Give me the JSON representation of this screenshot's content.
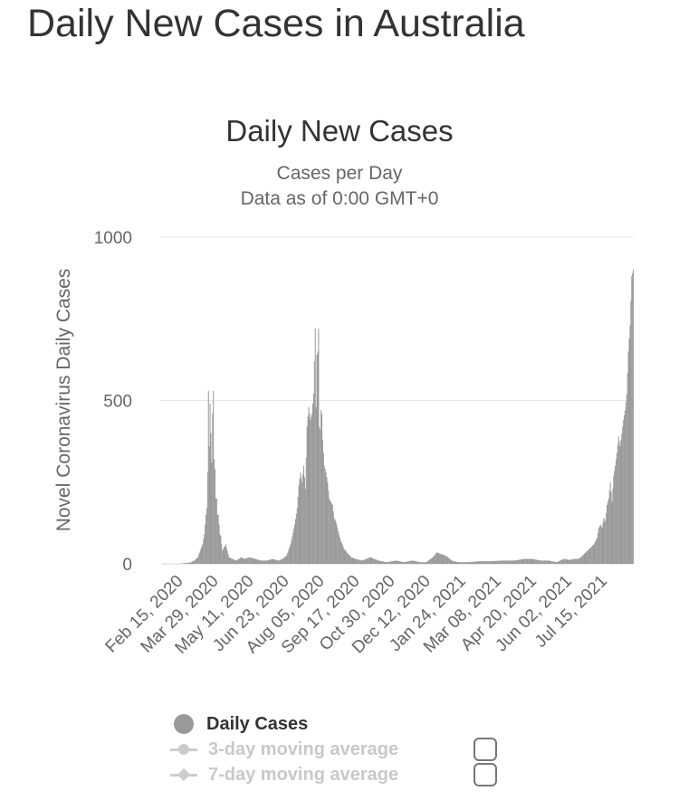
{
  "page_title": "Daily New Cases in Australia",
  "legend": {
    "items": [
      {
        "label": "Daily Cases",
        "active": true
      },
      {
        "label": "3-day moving average",
        "active": false
      },
      {
        "label": "7-day moving average",
        "active": false
      }
    ]
  },
  "colors": {
    "bars": "#999999",
    "grid": "#e6e6e6",
    "axis": "#ccd6eb",
    "inactive": "#cccccc"
  },
  "chart_data": {
    "type": "bar",
    "title": "Daily New Cases",
    "subtitle_lines": [
      "Cases per Day",
      "Data as of 0:00 GMT+0"
    ],
    "xlabel": "",
    "ylabel": "Novel Coronavirus Daily Cases",
    "ylim": [
      0,
      1000
    ],
    "y_ticks": [
      0,
      500,
      1000
    ],
    "x_tick_labels": [
      "Feb 15, 2020",
      "Mar 29, 2020",
      "May 11, 2020",
      "Jun 23, 2020",
      "Aug 05, 2020",
      "Sep 17, 2020",
      "Oct 30, 2020",
      "Dec 12, 2020",
      "Jan 24, 2021",
      "Mar 08, 2021",
      "Apr 20, 2021",
      "Jun 02, 2021",
      "Jul 15, 2021"
    ],
    "x_range": [
      "2020-01-25",
      "2021-08-22"
    ],
    "grid": true,
    "legend_position": "bottom",
    "series": [
      {
        "name": "Daily Cases",
        "points": [
          [
            "2020-02-15",
            0
          ],
          [
            "2020-02-22",
            2
          ],
          [
            "2020-02-29",
            4
          ],
          [
            "2020-03-05",
            10
          ],
          [
            "2020-03-09",
            20
          ],
          [
            "2020-03-12",
            40
          ],
          [
            "2020-03-15",
            60
          ],
          [
            "2020-03-17",
            90
          ],
          [
            "2020-03-19",
            150
          ],
          [
            "2020-03-20",
            170
          ],
          [
            "2020-03-21",
            280
          ],
          [
            "2020-03-22",
            530
          ],
          [
            "2020-03-23",
            360
          ],
          [
            "2020-03-24",
            490
          ],
          [
            "2020-03-25",
            400
          ],
          [
            "2020-03-26",
            310
          ],
          [
            "2020-03-27",
            460
          ],
          [
            "2020-03-28",
            530
          ],
          [
            "2020-03-29",
            320
          ],
          [
            "2020-03-30",
            290
          ],
          [
            "2020-03-31",
            200
          ],
          [
            "2020-04-01",
            200
          ],
          [
            "2020-04-02",
            150
          ],
          [
            "2020-04-03",
            150
          ],
          [
            "2020-04-04",
            120
          ],
          [
            "2020-04-05",
            90
          ],
          [
            "2020-04-06",
            85
          ],
          [
            "2020-04-07",
            60
          ],
          [
            "2020-04-08",
            40
          ],
          [
            "2020-04-10",
            50
          ],
          [
            "2020-04-12",
            60
          ],
          [
            "2020-04-14",
            40
          ],
          [
            "2020-04-16",
            20
          ],
          [
            "2020-04-20",
            15
          ],
          [
            "2020-04-25",
            10
          ],
          [
            "2020-05-01",
            20
          ],
          [
            "2020-05-05",
            15
          ],
          [
            "2020-05-11",
            20
          ],
          [
            "2020-05-18",
            15
          ],
          [
            "2020-05-25",
            10
          ],
          [
            "2020-06-01",
            10
          ],
          [
            "2020-06-08",
            15
          ],
          [
            "2020-06-15",
            10
          ],
          [
            "2020-06-20",
            15
          ],
          [
            "2020-06-25",
            25
          ],
          [
            "2020-06-30",
            60
          ],
          [
            "2020-07-05",
            120
          ],
          [
            "2020-07-08",
            170
          ],
          [
            "2020-07-10",
            240
          ],
          [
            "2020-07-12",
            280
          ],
          [
            "2020-07-14",
            250
          ],
          [
            "2020-07-16",
            300
          ],
          [
            "2020-07-18",
            230
          ],
          [
            "2020-07-20",
            420
          ],
          [
            "2020-07-22",
            480
          ],
          [
            "2020-07-24",
            440
          ],
          [
            "2020-07-26",
            460
          ],
          [
            "2020-07-28",
            520
          ],
          [
            "2020-07-30",
            720
          ],
          [
            "2020-07-31",
            480
          ],
          [
            "2020-08-01",
            640
          ],
          [
            "2020-08-02",
            650
          ],
          [
            "2020-08-03",
            720
          ],
          [
            "2020-08-04",
            420
          ],
          [
            "2020-08-05",
            410
          ],
          [
            "2020-08-06",
            470
          ],
          [
            "2020-08-07",
            460
          ],
          [
            "2020-08-08",
            380
          ],
          [
            "2020-08-10",
            300
          ],
          [
            "2020-08-12",
            280
          ],
          [
            "2020-08-14",
            250
          ],
          [
            "2020-08-16",
            200
          ],
          [
            "2020-08-18",
            190
          ],
          [
            "2020-08-20",
            180
          ],
          [
            "2020-08-22",
            140
          ],
          [
            "2020-08-24",
            130
          ],
          [
            "2020-08-26",
            110
          ],
          [
            "2020-08-28",
            90
          ],
          [
            "2020-08-30",
            70
          ],
          [
            "2020-09-01",
            60
          ],
          [
            "2020-09-03",
            45
          ],
          [
            "2020-09-05",
            40
          ],
          [
            "2020-09-08",
            30
          ],
          [
            "2020-09-12",
            20
          ],
          [
            "2020-09-17",
            15
          ],
          [
            "2020-09-25",
            10
          ],
          [
            "2020-10-05",
            20
          ],
          [
            "2020-10-15",
            10
          ],
          [
            "2020-10-25",
            5
          ],
          [
            "2020-11-05",
            10
          ],
          [
            "2020-11-15",
            5
          ],
          [
            "2020-11-25",
            10
          ],
          [
            "2020-12-05",
            5
          ],
          [
            "2020-12-12",
            5
          ],
          [
            "2020-12-20",
            20
          ],
          [
            "2020-12-25",
            35
          ],
          [
            "2020-12-30",
            30
          ],
          [
            "2021-01-05",
            25
          ],
          [
            "2021-01-12",
            10
          ],
          [
            "2021-01-20",
            5
          ],
          [
            "2021-02-01",
            5
          ],
          [
            "2021-02-15",
            8
          ],
          [
            "2021-03-01",
            8
          ],
          [
            "2021-03-15",
            10
          ],
          [
            "2021-03-30",
            10
          ],
          [
            "2021-04-10",
            15
          ],
          [
            "2021-04-20",
            15
          ],
          [
            "2021-04-30",
            10
          ],
          [
            "2021-05-10",
            10
          ],
          [
            "2021-05-20",
            5
          ],
          [
            "2021-05-28",
            15
          ],
          [
            "2021-06-05",
            12
          ],
          [
            "2021-06-10",
            15
          ],
          [
            "2021-06-15",
            15
          ],
          [
            "2021-06-18",
            20
          ],
          [
            "2021-06-22",
            30
          ],
          [
            "2021-06-26",
            40
          ],
          [
            "2021-06-30",
            50
          ],
          [
            "2021-07-04",
            60
          ],
          [
            "2021-07-08",
            80
          ],
          [
            "2021-07-10",
            110
          ],
          [
            "2021-07-12",
            120
          ],
          [
            "2021-07-14",
            110
          ],
          [
            "2021-07-16",
            140
          ],
          [
            "2021-07-18",
            130
          ],
          [
            "2021-07-20",
            180
          ],
          [
            "2021-07-22",
            200
          ],
          [
            "2021-07-24",
            250
          ],
          [
            "2021-07-26",
            190
          ],
          [
            "2021-07-28",
            270
          ],
          [
            "2021-07-30",
            300
          ],
          [
            "2021-08-01",
            340
          ],
          [
            "2021-08-03",
            390
          ],
          [
            "2021-08-05",
            360
          ],
          [
            "2021-08-07",
            400
          ],
          [
            "2021-08-09",
            440
          ],
          [
            "2021-08-11",
            470
          ],
          [
            "2021-08-13",
            520
          ],
          [
            "2021-08-15",
            650
          ],
          [
            "2021-08-17",
            730
          ],
          [
            "2021-08-19",
            880
          ],
          [
            "2021-08-21",
            900
          ]
        ]
      }
    ]
  }
}
